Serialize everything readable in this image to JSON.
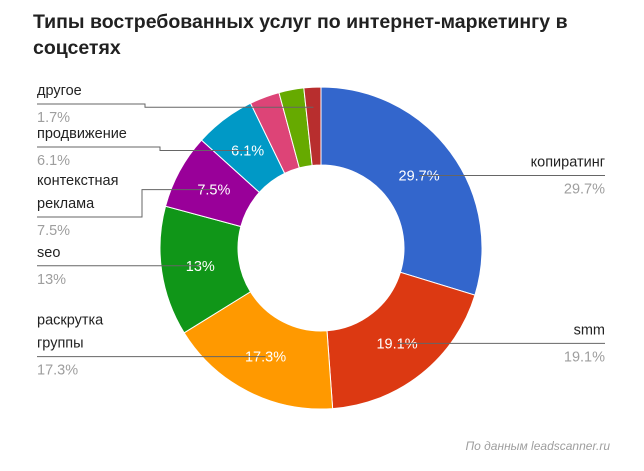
{
  "chart_data": {
    "type": "pie",
    "variant": "donut",
    "title": "Типы востребованных услуг по интернет-маркетингу в соцсетях",
    "slices": [
      {
        "name": "копиратинг",
        "value": 29.7,
        "label": "29.7%",
        "color": "#3366cc"
      },
      {
        "name": "smm",
        "value": 19.1,
        "label": "19.1%",
        "color": "#dc3912"
      },
      {
        "name": "раскрутка группы",
        "value": 17.3,
        "label": "17.3%",
        "color": "#ff9900"
      },
      {
        "name": "seo",
        "value": 13,
        "label": "13%",
        "color": "#109618"
      },
      {
        "name": "контекстная реклама",
        "value": 7.5,
        "label": "7.5%",
        "color": "#990099"
      },
      {
        "name": "продвижение",
        "value": 6.1,
        "label": "6.1%",
        "color": "#0099c6"
      },
      {
        "name": "",
        "value": 3.0,
        "label": "",
        "color": "#dd4477"
      },
      {
        "name": "",
        "value": 2.5,
        "label": "",
        "color": "#66aa00"
      },
      {
        "name": "другое",
        "value": 1.7,
        "label": "1.7%",
        "color": "#b82e2e"
      }
    ],
    "source": "По данным leadscanner.ru"
  }
}
